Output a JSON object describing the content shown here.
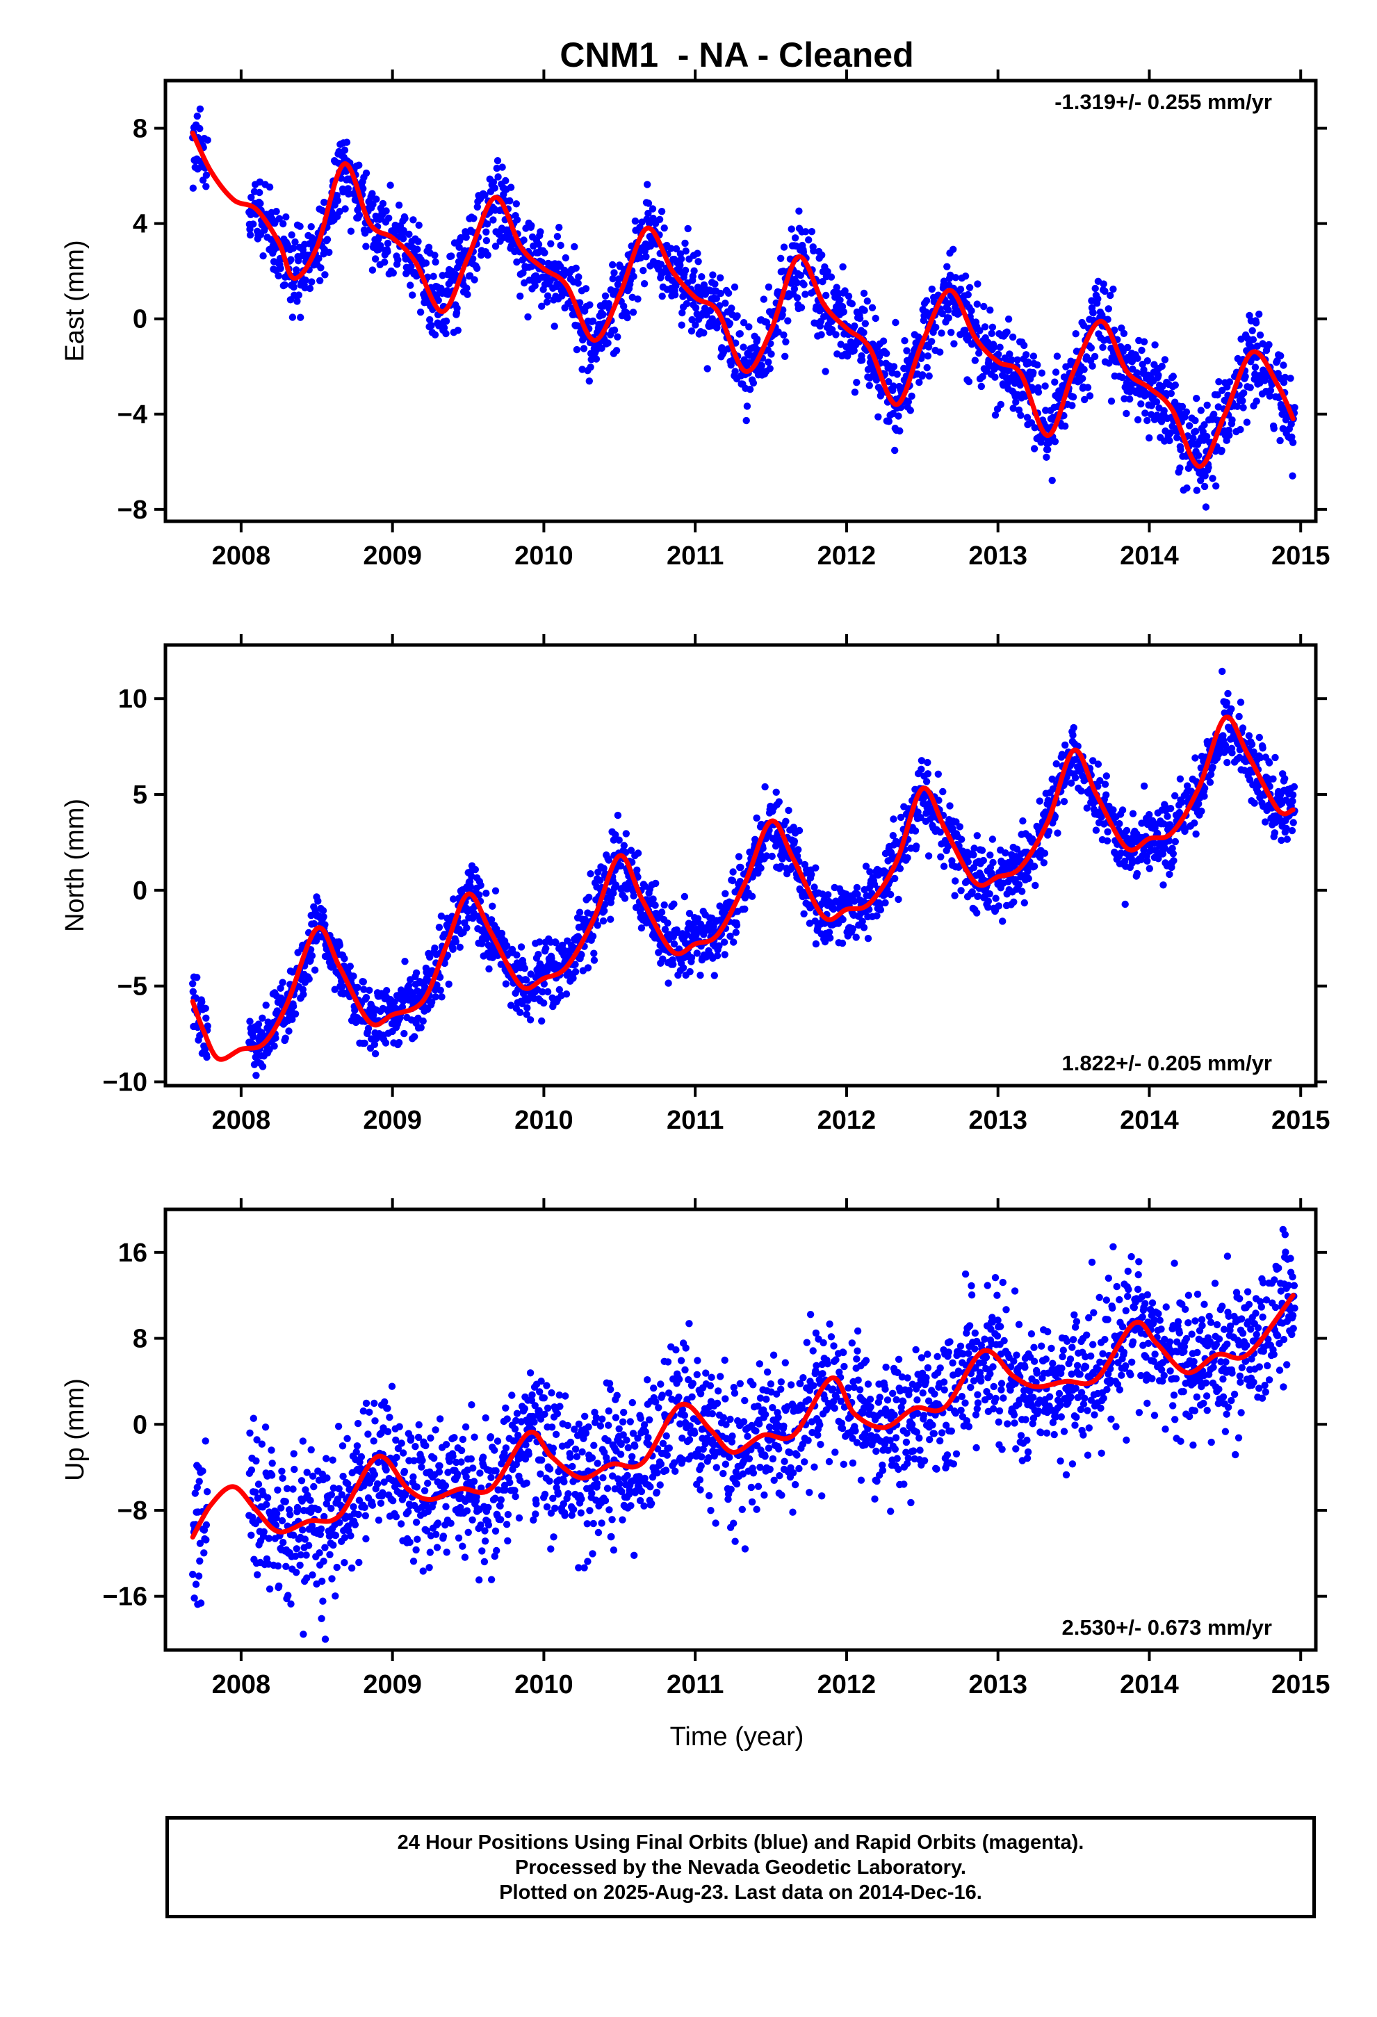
{
  "title": "CNM1  - NA - Cleaned",
  "xlabel": "Time (year)",
  "colors": {
    "points": "#0000ff",
    "fit": "#ff0000",
    "frame": "#000000"
  },
  "footer": {
    "line1": "24 Hour Positions Using Final Orbits (blue) and Rapid Orbits (magenta).",
    "line2": "Processed by the Nevada Geodetic Laboratory.",
    "line3": "Plotted on 2025-Aug-23. Last data on 2014-Dec-16."
  },
  "chart_data": [
    {
      "type": "scatter",
      "component": "east",
      "ylabel": "East (mm)",
      "rate_label": "-1.319+/- 0.255 mm/yr",
      "rate_position": "top-right",
      "xlim": [
        2007.5,
        2015.1
      ],
      "ylim": [
        -8.5,
        10.0
      ],
      "xticks": [
        2008,
        2009,
        2010,
        2011,
        2012,
        2013,
        2014,
        2015
      ],
      "yticks": [
        -8,
        -4,
        0,
        4,
        8
      ],
      "grid": false,
      "fit_curve": {
        "x": [
          2007.68,
          2007.8,
          2007.95,
          2008.1,
          2008.25,
          2008.35,
          2008.5,
          2008.68,
          2008.85,
          2009.0,
          2009.15,
          2009.33,
          2009.5,
          2009.68,
          2009.85,
          2010.0,
          2010.15,
          2010.33,
          2010.5,
          2010.68,
          2010.85,
          2011.0,
          2011.15,
          2011.33,
          2011.5,
          2011.68,
          2011.85,
          2012.0,
          2012.15,
          2012.33,
          2012.5,
          2012.68,
          2012.85,
          2013.0,
          2013.15,
          2013.33,
          2013.5,
          2013.68,
          2013.85,
          2014.0,
          2014.15,
          2014.33,
          2014.5,
          2014.68,
          2014.85,
          2014.95
        ],
        "y": [
          7.8,
          6.2,
          5.0,
          4.6,
          3.2,
          1.7,
          3.0,
          6.5,
          4.0,
          3.4,
          2.4,
          0.3,
          2.6,
          5.1,
          3.0,
          2.1,
          1.4,
          -0.9,
          1.0,
          3.8,
          2.0,
          0.9,
          0.3,
          -2.2,
          -0.5,
          2.6,
          0.6,
          -0.4,
          -1.2,
          -3.6,
          -1.0,
          1.2,
          -0.8,
          -1.8,
          -2.3,
          -4.9,
          -2.2,
          -0.1,
          -2.2,
          -2.9,
          -3.8,
          -6.2,
          -4.0,
          -1.4,
          -2.8,
          -4.2
        ]
      },
      "scatter_profile": {
        "note": "daily positions scattered about the fit curve",
        "start": 2007.68,
        "end": 2014.96,
        "scatter_sd_mm": 0.9,
        "gap": [
          2007.78,
          2008.05
        ]
      }
    },
    {
      "type": "scatter",
      "component": "north",
      "ylabel": "North (mm)",
      "rate_label": "1.822+/- 0.205 mm/yr",
      "rate_position": "bottom-right",
      "xlim": [
        2007.5,
        2015.1
      ],
      "ylim": [
        -10.2,
        12.8
      ],
      "xticks": [
        2008,
        2009,
        2010,
        2011,
        2012,
        2013,
        2014,
        2015
      ],
      "yticks": [
        -10,
        -5,
        0,
        5,
        10
      ],
      "yticklabels": [
        "−10",
        "−5",
        "0",
        "5",
        "10"
      ],
      "grid": false,
      "fit_curve": {
        "x": [
          2007.68,
          2007.75,
          2007.85,
          2008.0,
          2008.15,
          2008.3,
          2008.5,
          2008.65,
          2008.85,
          2009.0,
          2009.2,
          2009.35,
          2009.5,
          2009.65,
          2009.85,
          2010.0,
          2010.15,
          2010.33,
          2010.5,
          2010.65,
          2010.85,
          2011.0,
          2011.15,
          2011.33,
          2011.5,
          2011.65,
          2011.85,
          2012.0,
          2012.15,
          2012.33,
          2012.5,
          2012.65,
          2012.85,
          2013.0,
          2013.15,
          2013.33,
          2013.5,
          2013.65,
          2013.85,
          2014.0,
          2014.15,
          2014.33,
          2014.5,
          2014.65,
          2014.85,
          2014.95
        ],
        "y": [
          -5.8,
          -7.3,
          -8.8,
          -8.3,
          -8.0,
          -6.0,
          -2.0,
          -4.0,
          -6.9,
          -6.5,
          -5.8,
          -3.0,
          -0.2,
          -2.2,
          -5.0,
          -4.6,
          -4.0,
          -1.5,
          1.8,
          -0.5,
          -3.2,
          -2.8,
          -2.3,
          0.4,
          3.6,
          1.6,
          -1.4,
          -1.0,
          -0.7,
          1.5,
          5.3,
          3.2,
          0.4,
          0.7,
          1.2,
          3.6,
          7.3,
          5.0,
          2.2,
          2.7,
          3.0,
          5.4,
          9.0,
          7.1,
          4.2,
          4.2
        ]
      },
      "scatter_profile": {
        "note": "daily positions scattered about the fit curve",
        "start": 2007.68,
        "end": 2014.96,
        "scatter_sd_mm": 0.9,
        "gap": [
          2007.78,
          2008.05
        ]
      }
    },
    {
      "type": "scatter",
      "component": "up",
      "ylabel": "Up (mm)",
      "rate_label": "2.530+/- 0.673 mm/yr",
      "rate_position": "bottom-right",
      "xlim": [
        2007.5,
        2015.1
      ],
      "ylim": [
        -21.0,
        20.0
      ],
      "xticks": [
        2008,
        2009,
        2010,
        2011,
        2012,
        2013,
        2014,
        2015
      ],
      "yticks": [
        -16,
        -8,
        0,
        8,
        16
      ],
      "yticklabels": [
        "−16",
        "−8",
        "0",
        "8",
        "16"
      ],
      "grid": false,
      "fit_curve": {
        "x": [
          2007.68,
          2007.8,
          2007.95,
          2008.1,
          2008.25,
          2008.45,
          2008.65,
          2008.9,
          2009.1,
          2009.25,
          2009.45,
          2009.65,
          2009.9,
          2010.05,
          2010.25,
          2010.45,
          2010.65,
          2010.9,
          2011.1,
          2011.25,
          2011.45,
          2011.65,
          2011.9,
          2012.05,
          2012.25,
          2012.45,
          2012.65,
          2012.9,
          2013.1,
          2013.25,
          2013.45,
          2013.65,
          2013.9,
          2014.05,
          2014.25,
          2014.45,
          2014.65,
          2014.95
        ],
        "y": [
          -10.5,
          -7.5,
          -5.8,
          -8.0,
          -10.0,
          -9.0,
          -8.5,
          -3.0,
          -6.0,
          -7.0,
          -6.0,
          -6.0,
          -0.8,
          -3.0,
          -5.0,
          -3.7,
          -3.6,
          1.8,
          -0.5,
          -2.6,
          -1.0,
          -1.0,
          4.3,
          1.0,
          -0.3,
          1.5,
          1.6,
          6.8,
          4.5,
          3.5,
          4.0,
          4.2,
          9.4,
          7.5,
          4.8,
          6.5,
          6.5,
          12.0
        ]
      },
      "scatter_profile": {
        "note": "daily positions scattered about the fit curve",
        "start": 2007.68,
        "end": 2014.96,
        "scatter_sd_mm": 3.3,
        "gap": [
          2007.78,
          2008.05
        ]
      }
    }
  ]
}
